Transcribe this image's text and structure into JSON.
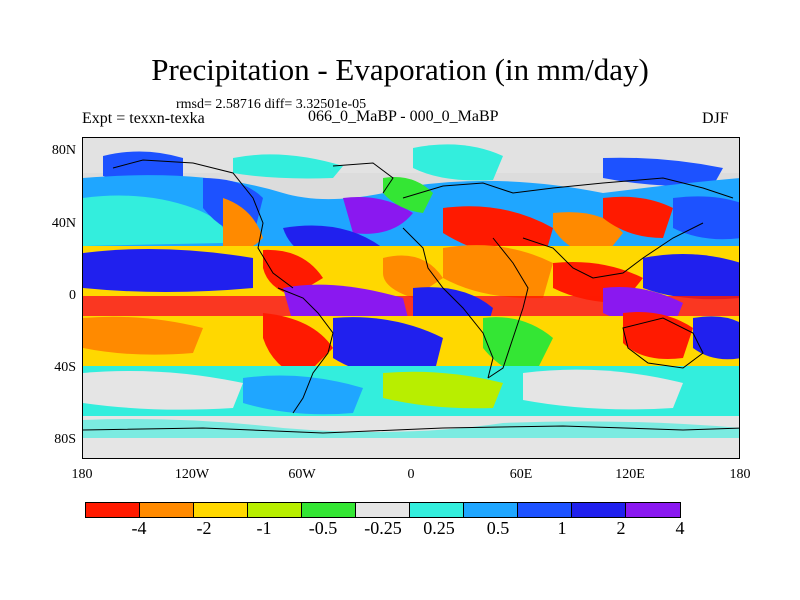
{
  "figure": {
    "title": "Precipitation - Evaporation (in mm/day)",
    "stats": "rmsd= 2.58716 diff= 3.32501e-05",
    "experiment": "Expt = texxn-texka",
    "period": "066_0_MaBP - 000_0_MaBP",
    "season": "DJF"
  },
  "map": {
    "x_ticks": [
      "180",
      "120W",
      "60W",
      "0",
      "60E",
      "120E",
      "180"
    ],
    "y_ticks": [
      "80N",
      "40N",
      "0",
      "40S",
      "80S"
    ],
    "lon_range": [
      -180,
      180
    ],
    "lat_range": [
      -90,
      90
    ]
  },
  "colorbar": {
    "labels": [
      "-4",
      "-2",
      "-1",
      "-0.5",
      "-0.25",
      "0.25",
      "0.5",
      "1",
      "2",
      "4"
    ],
    "colors": [
      "#ff1a00",
      "#ff8a00",
      "#ffd800",
      "#b8ee00",
      "#34e634",
      "#e5e5e5",
      "#33eedd",
      "#1fa6ff",
      "#1d52ff",
      "#2020ee",
      "#8a18f0"
    ]
  },
  "colors": {
    "land_outline": "#000000",
    "background": "#dcdcdc"
  }
}
